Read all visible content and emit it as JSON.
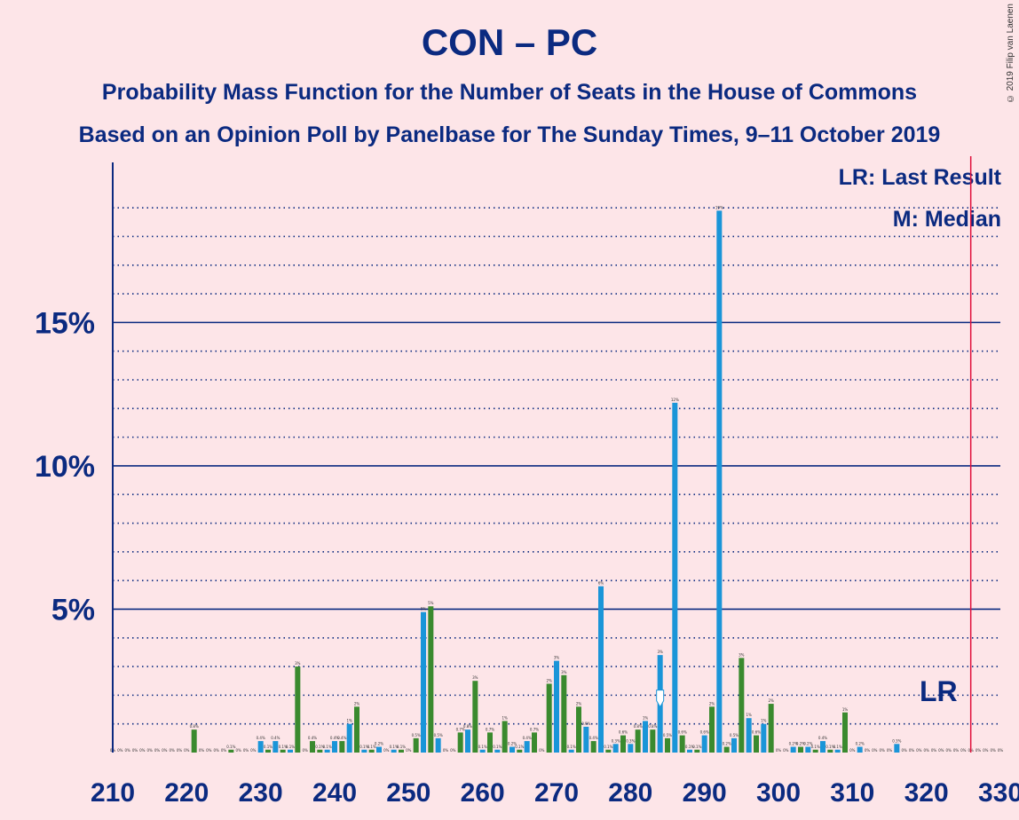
{
  "header": {
    "title": "CON – PC",
    "subtitle1": "Probability Mass Function for the Number of Seats in the House of Commons",
    "subtitle2": "Based on an Opinion Poll by Panelbase for The Sunday Times, 9–11 October 2019",
    "copyright": "© 2019 Filip van Laenen"
  },
  "legend": {
    "lr": "LR: Last Result",
    "m": "M: Median"
  },
  "colors": {
    "background": "#fde5e8",
    "text": "#0b2a80",
    "axis": "#0b2a80",
    "bar_blue": "#1a95d8",
    "bar_green": "#3a8a2e",
    "last_result_line": "#e0103a"
  },
  "chart_data": {
    "type": "bar",
    "xlim": [
      210,
      330
    ],
    "ylim": [
      0,
      20.8
    ],
    "x_ticks": [
      210,
      220,
      230,
      240,
      250,
      260,
      270,
      280,
      290,
      300,
      310,
      320,
      330
    ],
    "y_ticks": [
      5,
      10,
      15
    ],
    "y_tick_labels": [
      "5%",
      "10%",
      "15%"
    ],
    "last_result": 326,
    "last_result_label": "LR",
    "median": 284,
    "median_label": "M",
    "bars": [
      {
        "x": 221,
        "value": 0.8,
        "color": "green"
      },
      {
        "x": 226,
        "value": 0.1,
        "color": "green"
      },
      {
        "x": 230,
        "value": 0.4,
        "color": "blue"
      },
      {
        "x": 231,
        "value": 0.1,
        "color": "green"
      },
      {
        "x": 232,
        "value": 0.4,
        "color": "blue"
      },
      {
        "x": 233,
        "value": 0.1,
        "color": "green"
      },
      {
        "x": 234,
        "value": 0.1,
        "color": "blue"
      },
      {
        "x": 235,
        "value": 3.0,
        "color": "green"
      },
      {
        "x": 237,
        "value": 0.4,
        "color": "green"
      },
      {
        "x": 238,
        "value": 0.1,
        "color": "green"
      },
      {
        "x": 239,
        "value": 0.1,
        "color": "blue"
      },
      {
        "x": 240,
        "value": 0.4,
        "color": "blue"
      },
      {
        "x": 241,
        "value": 0.4,
        "color": "green"
      },
      {
        "x": 242,
        "value": 1.0,
        "color": "blue"
      },
      {
        "x": 243,
        "value": 1.6,
        "color": "green"
      },
      {
        "x": 244,
        "value": 0.1,
        "color": "blue"
      },
      {
        "x": 245,
        "value": 0.1,
        "color": "green"
      },
      {
        "x": 246,
        "value": 0.2,
        "color": "blue"
      },
      {
        "x": 248,
        "value": 0.1,
        "color": "blue"
      },
      {
        "x": 249,
        "value": 0.1,
        "color": "green"
      },
      {
        "x": 251,
        "value": 0.5,
        "color": "green"
      },
      {
        "x": 252,
        "value": 4.9,
        "color": "blue"
      },
      {
        "x": 253,
        "value": 5.1,
        "color": "green"
      },
      {
        "x": 254,
        "value": 0.5,
        "color": "blue"
      },
      {
        "x": 257,
        "value": 0.7,
        "color": "green"
      },
      {
        "x": 258,
        "value": 0.8,
        "color": "blue"
      },
      {
        "x": 259,
        "value": 2.5,
        "color": "green"
      },
      {
        "x": 260,
        "value": 0.1,
        "color": "blue"
      },
      {
        "x": 261,
        "value": 0.7,
        "color": "green"
      },
      {
        "x": 262,
        "value": 0.1,
        "color": "blue"
      },
      {
        "x": 263,
        "value": 1.1,
        "color": "green"
      },
      {
        "x": 264,
        "value": 0.2,
        "color": "blue"
      },
      {
        "x": 265,
        "value": 0.1,
        "color": "green"
      },
      {
        "x": 266,
        "value": 0.4,
        "color": "blue"
      },
      {
        "x": 267,
        "value": 0.7,
        "color": "green"
      },
      {
        "x": 269,
        "value": 2.4,
        "color": "green"
      },
      {
        "x": 270,
        "value": 3.2,
        "color": "blue"
      },
      {
        "x": 271,
        "value": 2.7,
        "color": "green"
      },
      {
        "x": 272,
        "value": 0.1,
        "color": "blue"
      },
      {
        "x": 273,
        "value": 1.6,
        "color": "green"
      },
      {
        "x": 274,
        "value": 0.9,
        "color": "blue"
      },
      {
        "x": 275,
        "value": 0.4,
        "color": "green"
      },
      {
        "x": 276,
        "value": 5.8,
        "color": "blue"
      },
      {
        "x": 277,
        "value": 0.1,
        "color": "green"
      },
      {
        "x": 278,
        "value": 0.3,
        "color": "blue"
      },
      {
        "x": 279,
        "value": 0.6,
        "color": "green"
      },
      {
        "x": 280,
        "value": 0.3,
        "color": "blue"
      },
      {
        "x": 281,
        "value": 0.8,
        "color": "green"
      },
      {
        "x": 282,
        "value": 1.1,
        "color": "blue"
      },
      {
        "x": 283,
        "value": 0.8,
        "color": "green"
      },
      {
        "x": 284,
        "value": 3.4,
        "color": "blue"
      },
      {
        "x": 285,
        "value": 0.5,
        "color": "green"
      },
      {
        "x": 286,
        "value": 12.2,
        "color": "blue"
      },
      {
        "x": 287,
        "value": 0.6,
        "color": "green"
      },
      {
        "x": 288,
        "value": 0.1,
        "color": "blue"
      },
      {
        "x": 289,
        "value": 0.1,
        "color": "green"
      },
      {
        "x": 290,
        "value": 0.6,
        "color": "blue"
      },
      {
        "x": 291,
        "value": 1.6,
        "color": "green"
      },
      {
        "x": 292,
        "value": 18.9,
        "color": "blue"
      },
      {
        "x": 293,
        "value": 0.2,
        "color": "green"
      },
      {
        "x": 294,
        "value": 0.5,
        "color": "blue"
      },
      {
        "x": 295,
        "value": 3.3,
        "color": "green"
      },
      {
        "x": 296,
        "value": 1.2,
        "color": "blue"
      },
      {
        "x": 297,
        "value": 0.6,
        "color": "green"
      },
      {
        "x": 298,
        "value": 1.0,
        "color": "blue"
      },
      {
        "x": 299,
        "value": 1.7,
        "color": "green"
      },
      {
        "x": 302,
        "value": 0.2,
        "color": "blue"
      },
      {
        "x": 303,
        "value": 0.2,
        "color": "green"
      },
      {
        "x": 304,
        "value": 0.2,
        "color": "blue"
      },
      {
        "x": 305,
        "value": 0.1,
        "color": "green"
      },
      {
        "x": 306,
        "value": 0.4,
        "color": "blue"
      },
      {
        "x": 307,
        "value": 0.1,
        "color": "green"
      },
      {
        "x": 308,
        "value": 0.1,
        "color": "blue"
      },
      {
        "x": 309,
        "value": 1.4,
        "color": "green"
      },
      {
        "x": 311,
        "value": 0.2,
        "color": "blue"
      },
      {
        "x": 316,
        "value": 0.3,
        "color": "blue"
      }
    ]
  }
}
